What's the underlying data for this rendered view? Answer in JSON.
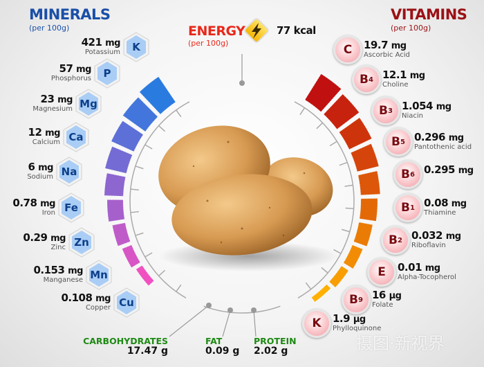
{
  "minerals": {
    "title": "MINERALS",
    "subtitle": "(per 100g)",
    "accent": "#1a4fa8",
    "items": [
      {
        "symbol": "K",
        "value": "421",
        "unit": "mg",
        "name": "Potassium"
      },
      {
        "symbol": "P",
        "value": "57",
        "unit": "mg",
        "name": "Phosphorus"
      },
      {
        "symbol": "Mg",
        "value": "23",
        "unit": "mg",
        "name": "Magnesium"
      },
      {
        "symbol": "Ca",
        "value": "12",
        "unit": "mg",
        "name": "Calcium"
      },
      {
        "symbol": "Na",
        "value": "6",
        "unit": "mg",
        "name": "Sodium"
      },
      {
        "symbol": "Fe",
        "value": "0.78",
        "unit": "mg",
        "name": "Iron"
      },
      {
        "symbol": "Zn",
        "value": "0.29",
        "unit": "mg",
        "name": "Zinc"
      },
      {
        "symbol": "Mn",
        "value": "0.153",
        "unit": "mg",
        "name": "Manganese"
      },
      {
        "symbol": "Cu",
        "value": "0.108",
        "unit": "mg",
        "name": "Copper"
      }
    ]
  },
  "vitamins": {
    "title": "VITAMINS",
    "subtitle": "(per 100g)",
    "accent": "#9b1115",
    "items": [
      {
        "symbol": "C",
        "index": "",
        "value": "19.7",
        "unit": "mg",
        "name": "Ascorbic Acid"
      },
      {
        "symbol": "B",
        "index": "4",
        "value": "12.1",
        "unit": "mg",
        "name": "Choline"
      },
      {
        "symbol": "B",
        "index": "3",
        "value": "1.054",
        "unit": "mg",
        "name": "Niacin"
      },
      {
        "symbol": "B",
        "index": "5",
        "value": "0.296",
        "unit": "mg",
        "name": "Pantothenic acid"
      },
      {
        "symbol": "B",
        "index": "6",
        "value": "0.295",
        "unit": "mg",
        "name": ""
      },
      {
        "symbol": "B",
        "index": "1",
        "value": "0.08",
        "unit": "mg",
        "name": "Thiamine"
      },
      {
        "symbol": "B",
        "index": "2",
        "value": "0.032",
        "unit": "mg",
        "name": "Riboflavin"
      },
      {
        "symbol": "E",
        "index": "",
        "value": "0.01",
        "unit": "mg",
        "name": "Alpha-Tocopherol"
      },
      {
        "symbol": "B",
        "index": "9",
        "value": "16",
        "unit": "µg",
        "name": "Folate"
      },
      {
        "symbol": "K",
        "index": "",
        "value": "1.9",
        "unit": "µg",
        "name": "Phylloquinone"
      }
    ]
  },
  "energy": {
    "title": "ENERGY",
    "subtitle": "(per 100g)",
    "value": "77 kcal",
    "icon": "lightning-icon",
    "accent": "#e8281a"
  },
  "macros": [
    {
      "name": "CARBOHYDRATES",
      "value": "17.47 g"
    },
    {
      "name": "FAT",
      "value": "0.09 g"
    },
    {
      "name": "PROTEIN",
      "value": "2.02 g"
    }
  ],
  "colors": {
    "macro": "#1e8a14",
    "mineral_bar_start": "#2a7be0",
    "mineral_bar_end": "#f050c0",
    "vitamin_bar_start": "#c01010",
    "vitamin_bar_end": "#ffb000"
  },
  "watermark": "摄图·新视界"
}
